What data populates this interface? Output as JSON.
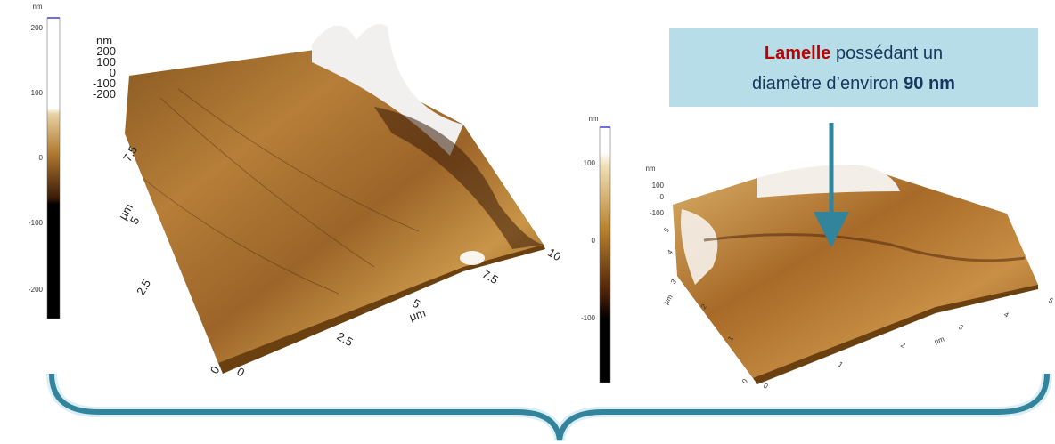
{
  "left_colorbar": {
    "unit": "nm",
    "ticks": [
      "200",
      "100",
      "0",
      "-100",
      "-200"
    ]
  },
  "left_surface": {
    "z_unit": "nm",
    "z_ticks": [
      "200",
      "100",
      "0",
      "-100",
      "-200"
    ],
    "x_ticks": [
      "0",
      "2.5",
      "5",
      "7.5",
      "10"
    ],
    "x_unit": "µm",
    "y_ticks": [
      "0",
      "2.5",
      "5",
      "7.5"
    ],
    "y_unit": "µm"
  },
  "right_colorbar": {
    "unit": "nm",
    "ticks": [
      "100",
      "0",
      "-100"
    ]
  },
  "right_surface": {
    "z_unit": "nm",
    "z_ticks": [
      "100",
      "0",
      "-100"
    ],
    "x_ticks": [
      "0",
      "1",
      "2",
      "3",
      "4",
      "5"
    ],
    "x_unit": "µm",
    "y_ticks": [
      "0",
      "1",
      "2",
      "3",
      "4",
      "5"
    ],
    "y_unit": "µm"
  },
  "callout": {
    "highlight": "Lamelle",
    "text_1": "possédant un",
    "text_2": "diamètre d’environ",
    "value": "90 nm"
  }
}
